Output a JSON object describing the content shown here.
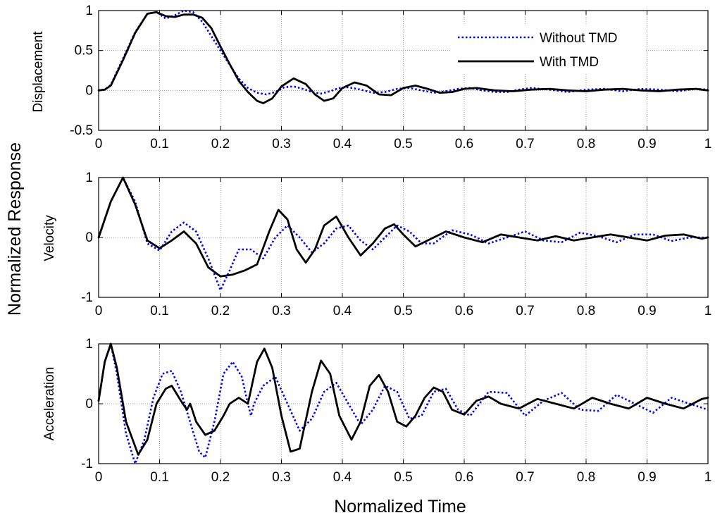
{
  "figure": {
    "ylabel": "Normalized Response",
    "xlabel": "Normalized Time"
  },
  "legend": {
    "items": [
      {
        "label": "Without TMD",
        "color": "#0000ff",
        "style": "dotted"
      },
      {
        "label": "With TMD",
        "color": "#000000",
        "style": "solid"
      }
    ]
  },
  "chart_data": [
    {
      "type": "line",
      "ylabel": "Displacement",
      "xlim": [
        0,
        1
      ],
      "ylim": [
        -0.5,
        1
      ],
      "xticks": [
        "0",
        "0.1",
        "0.2",
        "0.3",
        "0.4",
        "0.5",
        "0.6",
        "0.7",
        "0.8",
        "0.9",
        "1"
      ],
      "yticks": [
        "-0.5",
        "0",
        "0.5",
        "1"
      ],
      "grid": true,
      "legend_position": "top-right",
      "series": [
        {
          "name": "Without TMD",
          "color": "#0000ff",
          "style": "dotted",
          "x": [
            0,
            0.01,
            0.02,
            0.04,
            0.06,
            0.08,
            0.095,
            0.11,
            0.125,
            0.14,
            0.155,
            0.17,
            0.185,
            0.2,
            0.215,
            0.23,
            0.245,
            0.26,
            0.275,
            0.29,
            0.305,
            0.32,
            0.335,
            0.35,
            0.365,
            0.38,
            0.395,
            0.41,
            0.43,
            0.45,
            0.47,
            0.49,
            0.51,
            0.53,
            0.55,
            0.57,
            0.59,
            0.61,
            0.63,
            0.65,
            0.67,
            0.69,
            0.71,
            0.74,
            0.77,
            0.8,
            0.83,
            0.86,
            0.89,
            0.92,
            0.95,
            0.98,
            1.0
          ],
          "y": [
            0,
            0.01,
            0.07,
            0.4,
            0.73,
            0.96,
            0.98,
            0.9,
            0.94,
            1.0,
            0.98,
            0.86,
            0.68,
            0.5,
            0.32,
            0.15,
            0.03,
            -0.03,
            -0.05,
            -0.02,
            0.04,
            0.05,
            0.02,
            -0.02,
            -0.04,
            -0.01,
            0.03,
            0.04,
            0.01,
            -0.03,
            -0.02,
            0.02,
            0.03,
            0.0,
            -0.03,
            -0.01,
            0.02,
            0.03,
            0.0,
            -0.02,
            -0.02,
            0.01,
            0.03,
            0.01,
            -0.02,
            0.01,
            0.02,
            -0.01,
            0.02,
            0.01,
            -0.01,
            0.02,
            0.01
          ]
        },
        {
          "name": "With TMD",
          "color": "#000000",
          "style": "solid",
          "x": [
            0,
            0.01,
            0.02,
            0.04,
            0.06,
            0.08,
            0.095,
            0.11,
            0.125,
            0.14,
            0.155,
            0.17,
            0.185,
            0.2,
            0.215,
            0.23,
            0.245,
            0.26,
            0.27,
            0.285,
            0.3,
            0.32,
            0.34,
            0.355,
            0.37,
            0.385,
            0.4,
            0.42,
            0.44,
            0.46,
            0.48,
            0.5,
            0.52,
            0.54,
            0.56,
            0.58,
            0.6,
            0.62,
            0.65,
            0.68,
            0.71,
            0.74,
            0.77,
            0.8,
            0.83,
            0.86,
            0.89,
            0.92,
            0.95,
            0.98,
            1.0
          ],
          "y": [
            0,
            0.01,
            0.06,
            0.38,
            0.72,
            0.96,
            0.98,
            0.93,
            0.92,
            0.95,
            0.95,
            0.91,
            0.78,
            0.55,
            0.33,
            0.12,
            -0.02,
            -0.13,
            -0.16,
            -0.1,
            0.05,
            0.15,
            0.08,
            -0.05,
            -0.13,
            -0.1,
            0.03,
            0.1,
            0.06,
            -0.05,
            -0.06,
            0.03,
            0.06,
            0.02,
            -0.03,
            -0.02,
            0.02,
            0.03,
            0.0,
            -0.01,
            0.01,
            0.02,
            0.0,
            -0.01,
            0.01,
            0.02,
            0.0,
            -0.01,
            0.01,
            0.02,
            0.0
          ]
        }
      ]
    },
    {
      "type": "line",
      "ylabel": "Velocity",
      "xlim": [
        0,
        1
      ],
      "ylim": [
        -1,
        1
      ],
      "xticks": [
        "0",
        "0.1",
        "0.2",
        "0.3",
        "0.4",
        "0.5",
        "0.6",
        "0.7",
        "0.8",
        "0.9",
        "1"
      ],
      "yticks": [
        "-1",
        "0",
        "1"
      ],
      "grid": true,
      "series": [
        {
          "name": "Without TMD",
          "color": "#0000ff",
          "style": "dotted",
          "x": [
            0,
            0.02,
            0.04,
            0.06,
            0.08,
            0.1,
            0.12,
            0.14,
            0.16,
            0.18,
            0.2,
            0.215,
            0.23,
            0.25,
            0.27,
            0.29,
            0.31,
            0.33,
            0.35,
            0.37,
            0.39,
            0.41,
            0.43,
            0.45,
            0.47,
            0.49,
            0.51,
            0.53,
            0.55,
            0.58,
            0.61,
            0.64,
            0.67,
            0.7,
            0.73,
            0.76,
            0.79,
            0.82,
            0.85,
            0.88,
            0.91,
            0.94,
            0.97,
            1.0
          ],
          "y": [
            0,
            0.6,
            1.0,
            0.6,
            -0.1,
            -0.22,
            0.1,
            0.25,
            0.1,
            -0.35,
            -0.88,
            -0.55,
            -0.2,
            -0.2,
            -0.35,
            0.0,
            0.2,
            0.0,
            -0.25,
            -0.1,
            0.15,
            0.2,
            -0.05,
            -0.2,
            0.0,
            0.2,
            0.1,
            -0.1,
            -0.1,
            0.12,
            0.05,
            -0.1,
            0.0,
            0.1,
            -0.05,
            -0.08,
            0.08,
            0.02,
            -0.08,
            0.05,
            0.05,
            -0.06,
            0.0,
            0.0
          ]
        },
        {
          "name": "With TMD",
          "color": "#000000",
          "style": "solid",
          "x": [
            0,
            0.02,
            0.04,
            0.06,
            0.08,
            0.1,
            0.12,
            0.14,
            0.16,
            0.18,
            0.2,
            0.22,
            0.24,
            0.26,
            0.28,
            0.295,
            0.31,
            0.325,
            0.34,
            0.355,
            0.37,
            0.39,
            0.41,
            0.43,
            0.45,
            0.47,
            0.485,
            0.5,
            0.52,
            0.54,
            0.57,
            0.6,
            0.63,
            0.66,
            0.69,
            0.72,
            0.75,
            0.78,
            0.81,
            0.84,
            0.87,
            0.9,
            0.93,
            0.96,
            0.99,
            1.0
          ],
          "y": [
            0,
            0.6,
            1.0,
            0.55,
            -0.05,
            -0.18,
            -0.05,
            0.1,
            -0.1,
            -0.5,
            -0.65,
            -0.62,
            -0.55,
            -0.45,
            0.1,
            0.46,
            0.3,
            -0.2,
            -0.42,
            -0.2,
            0.2,
            0.35,
            0.0,
            -0.3,
            -0.1,
            0.15,
            0.22,
            0.05,
            -0.15,
            -0.05,
            0.1,
            0.0,
            -0.08,
            0.05,
            0.0,
            -0.05,
            0.02,
            -0.05,
            0.0,
            0.05,
            0.0,
            -0.05,
            0.03,
            0.05,
            -0.02,
            0.0
          ]
        }
      ]
    },
    {
      "type": "line",
      "ylabel": "Acceleration",
      "xlim": [
        0,
        1
      ],
      "ylim": [
        -1,
        1
      ],
      "xticks": [
        "0",
        "0.1",
        "0.2",
        "0.3",
        "0.4",
        "0.5",
        "0.6",
        "0.7",
        "0.8",
        "0.9",
        "1"
      ],
      "yticks": [
        "-1",
        "0",
        "1"
      ],
      "grid": true,
      "series": [
        {
          "name": "Without TMD",
          "color": "#0000ff",
          "style": "dotted",
          "x": [
            0,
            0.01,
            0.02,
            0.03,
            0.045,
            0.06,
            0.075,
            0.09,
            0.105,
            0.12,
            0.135,
            0.15,
            0.165,
            0.175,
            0.19,
            0.205,
            0.22,
            0.235,
            0.245,
            0.25,
            0.255,
            0.27,
            0.29,
            0.31,
            0.33,
            0.35,
            0.37,
            0.39,
            0.41,
            0.43,
            0.45,
            0.47,
            0.49,
            0.51,
            0.53,
            0.55,
            0.57,
            0.59,
            0.61,
            0.64,
            0.67,
            0.7,
            0.73,
            0.76,
            0.79,
            0.82,
            0.85,
            0.88,
            0.91,
            0.94,
            0.97,
            1.0
          ],
          "y": [
            0.05,
            0.7,
            1.0,
            0.5,
            -0.5,
            -1.0,
            -0.6,
            0.1,
            0.5,
            0.55,
            0.2,
            -0.3,
            -0.8,
            -0.9,
            -0.3,
            0.5,
            0.7,
            0.45,
            0.0,
            -0.2,
            0.0,
            0.3,
            0.45,
            0.0,
            -0.45,
            -0.25,
            0.2,
            0.35,
            0.0,
            -0.35,
            -0.1,
            0.3,
            0.2,
            -0.25,
            -0.2,
            0.2,
            0.25,
            -0.1,
            -0.2,
            0.2,
            0.18,
            -0.2,
            0.05,
            0.18,
            -0.1,
            -0.12,
            0.15,
            0.0,
            -0.15,
            0.1,
            0.0,
            -0.1
          ]
        },
        {
          "name": "With TMD",
          "color": "#000000",
          "style": "solid",
          "x": [
            0,
            0.01,
            0.02,
            0.03,
            0.045,
            0.065,
            0.08,
            0.095,
            0.11,
            0.12,
            0.135,
            0.145,
            0.15,
            0.152,
            0.16,
            0.175,
            0.19,
            0.205,
            0.215,
            0.23,
            0.245,
            0.26,
            0.272,
            0.285,
            0.3,
            0.315,
            0.33,
            0.35,
            0.365,
            0.38,
            0.395,
            0.415,
            0.43,
            0.445,
            0.46,
            0.475,
            0.49,
            0.505,
            0.52,
            0.535,
            0.55,
            0.565,
            0.58,
            0.6,
            0.62,
            0.64,
            0.66,
            0.69,
            0.72,
            0.75,
            0.78,
            0.81,
            0.84,
            0.87,
            0.9,
            0.93,
            0.96,
            0.99,
            1.0
          ],
          "y": [
            0.05,
            0.7,
            1.0,
            0.6,
            -0.3,
            -0.85,
            -0.6,
            0.0,
            0.25,
            0.3,
            0.05,
            -0.1,
            0.0,
            -0.05,
            -0.3,
            -0.52,
            -0.45,
            -0.2,
            0.0,
            0.1,
            0.0,
            0.7,
            0.92,
            0.6,
            -0.2,
            -0.8,
            -0.75,
            0.2,
            0.72,
            0.5,
            -0.2,
            -0.6,
            -0.3,
            0.3,
            0.48,
            0.2,
            -0.3,
            -0.38,
            -0.2,
            0.1,
            0.27,
            0.2,
            -0.1,
            -0.18,
            0.05,
            0.12,
            0.0,
            -0.08,
            0.08,
            0.0,
            -0.08,
            0.1,
            0.0,
            -0.08,
            0.1,
            0.0,
            -0.08,
            0.08,
            0.1
          ]
        }
      ]
    }
  ]
}
